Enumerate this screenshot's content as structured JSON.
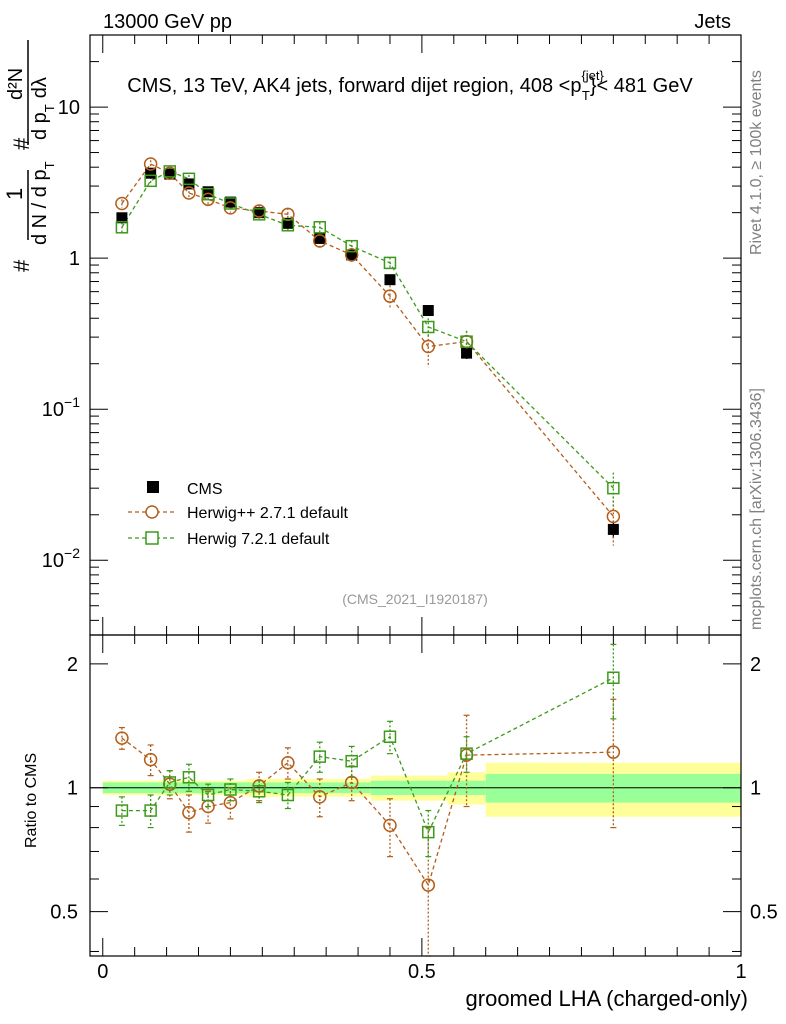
{
  "header": {
    "left": "13000 GeV pp",
    "right": "Jets"
  },
  "side_labels": {
    "rivet": "Rivet 4.1.0, ≥ 100k events",
    "mcplots": "mcplots.cern.ch [arXiv:1306.3436]"
  },
  "chart_data": {
    "type": "scatter",
    "title": "CMS, 13 TeV, AK4 jets, forward dijet region, 408 <p_T^{jet}< 481 GeV",
    "title_parts": {
      "before": "CMS, 13 TeV, AK4 jets, forward dijet region, 408 <p",
      "sub": "T",
      "sup": "{jet}",
      "after": "}< 481 GeV"
    },
    "analysis_id": "(CMS_2021_I1920187)",
    "xlabel": "groomed LHA (charged-only)",
    "ylabel_main": {
      "hash": "#",
      "one": "1",
      "dN": "d N / d p",
      "dN_sub": "T",
      "d2N": "d²N",
      "dpdl": "d p",
      "dpdl_sub": "T",
      "dl": "dλ"
    },
    "ylabel_ratio": "Ratio to CMS",
    "xlim": [
      -0.02,
      1.0
    ],
    "ylim_main": [
      0.0032,
      30
    ],
    "ylim_ratio": [
      0.39,
      2.35
    ],
    "yscale_main": "log",
    "yscale_ratio": "log",
    "x_ticks": [
      0,
      0.5,
      1
    ],
    "x_tick_labels": [
      "0",
      "0.5",
      "1"
    ],
    "main_y_ticks": [
      {
        "v": 10,
        "label": "10"
      },
      {
        "v": 1,
        "label": "1"
      },
      {
        "v": 0.1,
        "base": "10",
        "exp": "−1"
      },
      {
        "v": 0.01,
        "base": "10",
        "exp": "−2"
      }
    ],
    "ratio_y_ticks": [
      {
        "v": 0.5,
        "label": "0.5"
      },
      {
        "v": 1,
        "label": "1"
      },
      {
        "v": 2,
        "label": "2"
      }
    ],
    "legend": {
      "position": "bottom-left",
      "entries": [
        "CMS",
        "Herwig++ 2.7.1 default",
        "Herwig 7.2.1 default"
      ]
    },
    "colors": {
      "data": "#000000",
      "herwigpp": "#b35e1a",
      "herwig7": "#3c9a1a",
      "band_inner": "#99ff99",
      "band_outer": "#ffff99"
    },
    "bins": [
      [
        0.0,
        0.06
      ],
      [
        0.06,
        0.09
      ],
      [
        0.09,
        0.12
      ],
      [
        0.12,
        0.15
      ],
      [
        0.15,
        0.18
      ],
      [
        0.18,
        0.225
      ],
      [
        0.225,
        0.27
      ],
      [
        0.27,
        0.315
      ],
      [
        0.315,
        0.36
      ],
      [
        0.36,
        0.42
      ],
      [
        0.42,
        0.48
      ],
      [
        0.48,
        0.54
      ],
      [
        0.54,
        0.6
      ],
      [
        0.6,
        1.0
      ]
    ],
    "band_inner": [
      0.03,
      0.03,
      0.03,
      0.03,
      0.03,
      0.03,
      0.03,
      0.03,
      0.03,
      0.03,
      0.04,
      0.04,
      0.04,
      0.08
    ],
    "band_outer": [
      0.04,
      0.04,
      0.04,
      0.04,
      0.04,
      0.04,
      0.05,
      0.05,
      0.05,
      0.05,
      0.07,
      0.07,
      0.09,
      0.15
    ],
    "series": [
      {
        "name": "CMS",
        "marker": "square-filled",
        "x": [
          0.03,
          0.075,
          0.105,
          0.135,
          0.165,
          0.2,
          0.245,
          0.29,
          0.34,
          0.39,
          0.45,
          0.51,
          0.57,
          0.8
        ],
        "y": [
          1.85,
          3.65,
          3.6,
          3.1,
          2.75,
          2.35,
          2.0,
          1.7,
          1.35,
          1.05,
          0.72,
          0.45,
          0.235,
          0.016
        ],
        "yerr": [
          0.05,
          0.1,
          0.1,
          0.08,
          0.07,
          0.06,
          0.05,
          0.05,
          0.04,
          0.04,
          0.03,
          0.03,
          0.02,
          0.002
        ]
      },
      {
        "name": "Herwig++ 2.7.1 default",
        "marker": "circle-open",
        "linestyle": "dashed",
        "x": [
          0.03,
          0.075,
          0.105,
          0.135,
          0.165,
          0.2,
          0.245,
          0.29,
          0.34,
          0.39,
          0.45,
          0.51,
          0.57,
          0.8
        ],
        "y": [
          2.3,
          4.2,
          3.65,
          2.7,
          2.45,
          2.15,
          2.05,
          1.95,
          1.3,
          1.05,
          0.56,
          0.26,
          0.28,
          0.0195
        ],
        "yerr": [
          0.15,
          0.25,
          0.25,
          0.25,
          0.2,
          0.15,
          0.2,
          0.2,
          0.15,
          0.12,
          0.1,
          0.07,
          0.05,
          0.007
        ]
      },
      {
        "name": "Herwig 7.2.1 default",
        "marker": "square-open",
        "linestyle": "dashed",
        "x": [
          0.03,
          0.075,
          0.105,
          0.135,
          0.165,
          0.2,
          0.245,
          0.29,
          0.34,
          0.39,
          0.45,
          0.51,
          0.57,
          0.8
        ],
        "y": [
          1.6,
          3.25,
          3.75,
          3.35,
          2.65,
          2.3,
          1.95,
          1.65,
          1.6,
          1.2,
          0.93,
          0.35,
          0.28,
          0.03
        ],
        "yerr": [
          0.12,
          0.2,
          0.25,
          0.2,
          0.18,
          0.15,
          0.13,
          0.12,
          0.12,
          0.1,
          0.08,
          0.05,
          0.05,
          0.008
        ]
      }
    ],
    "ratio_series": [
      {
        "name": "Herwig++ 2.7.1 default",
        "marker": "circle-open",
        "x": [
          0.03,
          0.075,
          0.105,
          0.135,
          0.165,
          0.2,
          0.245,
          0.29,
          0.34,
          0.39,
          0.45,
          0.51,
          0.57,
          0.8
        ],
        "y": [
          1.32,
          1.17,
          1.02,
          0.87,
          0.9,
          0.92,
          1.01,
          1.15,
          0.95,
          1.03,
          0.81,
          0.58,
          1.2,
          1.22
        ],
        "yerr": [
          0.08,
          0.1,
          0.08,
          0.09,
          0.08,
          0.08,
          0.08,
          0.1,
          0.1,
          0.1,
          0.13,
          0.22,
          0.3,
          0.42
        ]
      },
      {
        "name": "Herwig 7.2.1 default",
        "marker": "square-open",
        "x": [
          0.03,
          0.075,
          0.105,
          0.135,
          0.165,
          0.2,
          0.245,
          0.29,
          0.34,
          0.39,
          0.45,
          0.51,
          0.57,
          0.8
        ],
        "y": [
          0.88,
          0.88,
          1.03,
          1.06,
          0.96,
          0.99,
          0.98,
          0.96,
          1.19,
          1.16,
          1.33,
          0.78,
          1.21,
          1.85
        ],
        "yerr": [
          0.07,
          0.08,
          0.07,
          0.08,
          0.06,
          0.06,
          0.06,
          0.07,
          0.1,
          0.1,
          0.12,
          0.1,
          0.12,
          0.38
        ]
      }
    ]
  }
}
